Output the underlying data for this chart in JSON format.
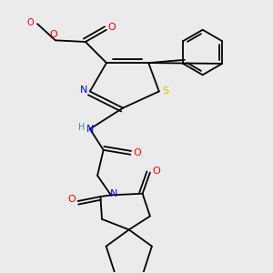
{
  "background_color": "#ebebeb",
  "atom_colors": {
    "N": "#0000ff",
    "O": "#ff0000",
    "S": "#cccc00",
    "C": "#000000",
    "H": "#4682b4"
  },
  "bond_color": "#000000",
  "figsize": [
    3.0,
    3.0
  ],
  "dpi": 100
}
